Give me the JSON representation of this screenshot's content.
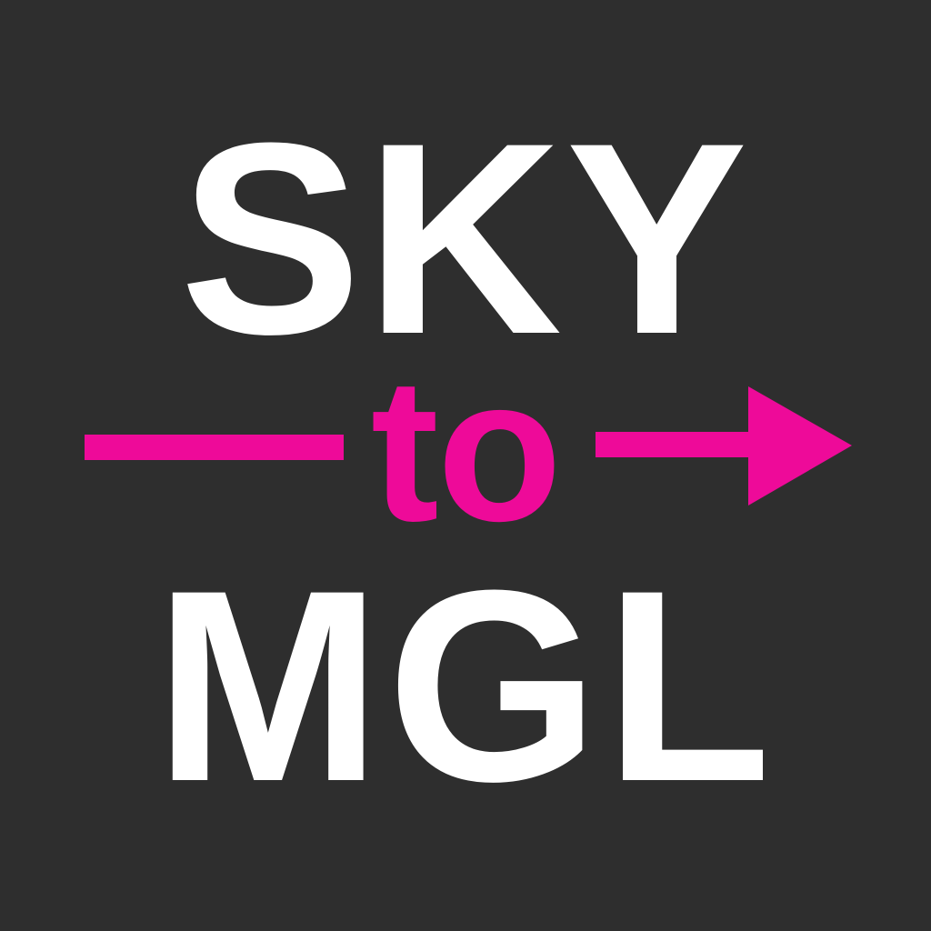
{
  "logo": {
    "top_word": "SKY",
    "middle_word": "to",
    "bottom_word": "MGL"
  },
  "colors": {
    "background": "#2e2e2e",
    "primary_text": "#ffffff",
    "accent": "#ee0a99"
  },
  "icons": {
    "arrow": "right-arrow-icon"
  }
}
